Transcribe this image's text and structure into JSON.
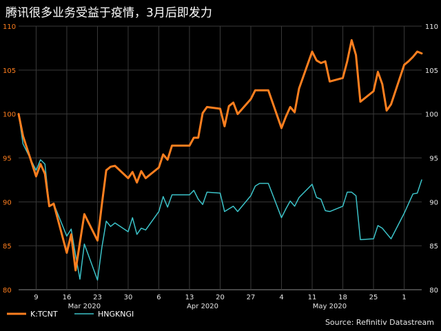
{
  "chart_data": {
    "type": "line",
    "title": "腾讯很多业务受益于疫情，3月后即发力",
    "source": "Source: Refinitiv Datastream",
    "ylim": [
      80,
      110
    ],
    "y_ticks": [
      80,
      85,
      90,
      95,
      100,
      105,
      110
    ],
    "x_ticks": [
      "9",
      "16",
      "23",
      "30",
      "6",
      "13",
      "20",
      "27",
      "4",
      "11",
      "18",
      "25",
      "1"
    ],
    "x_months": [
      "Mar 2020",
      "Apr 2020",
      "May 2020"
    ],
    "grid": true,
    "legend_position": "bottom-left",
    "colors": {
      "tcnt": "#ff7f1f",
      "hsi": "#3cc3c9"
    },
    "x": [
      "2020-03-05",
      "2020-03-06",
      "2020-03-09",
      "2020-03-10",
      "2020-03-11",
      "2020-03-12",
      "2020-03-13",
      "2020-03-16",
      "2020-03-17",
      "2020-03-18",
      "2020-03-19",
      "2020-03-20",
      "2020-03-23",
      "2020-03-24",
      "2020-03-25",
      "2020-03-26",
      "2020-03-27",
      "2020-03-30",
      "2020-03-31",
      "2020-04-01",
      "2020-04-02",
      "2020-04-03",
      "2020-04-06",
      "2020-04-07",
      "2020-04-08",
      "2020-04-09",
      "2020-04-10",
      "2020-04-13",
      "2020-04-14",
      "2020-04-15",
      "2020-04-16",
      "2020-04-17",
      "2020-04-20",
      "2020-04-21",
      "2020-04-22",
      "2020-04-23",
      "2020-04-24",
      "2020-04-27",
      "2020-04-28",
      "2020-04-29",
      "2020-04-30",
      "2020-05-01",
      "2020-05-04",
      "2020-05-05",
      "2020-05-06",
      "2020-05-07",
      "2020-05-08",
      "2020-05-11",
      "2020-05-12",
      "2020-05-13",
      "2020-05-14",
      "2020-05-15",
      "2020-05-18",
      "2020-05-19",
      "2020-05-20",
      "2020-05-21",
      "2020-05-22",
      "2020-05-25",
      "2020-05-26",
      "2020-05-27",
      "2020-05-28",
      "2020-05-29",
      "2020-06-01",
      "2020-06-02",
      "2020-06-03",
      "2020-06-04",
      "2020-06-05"
    ],
    "series": [
      {
        "name": "K:TCNT",
        "values": [
          100.0,
          97.5,
          92.9,
          94.3,
          93.2,
          89.5,
          89.8,
          84.2,
          86.3,
          82.2,
          85.4,
          88.6,
          85.6,
          89.7,
          93.6,
          94.0,
          94.1,
          92.7,
          93.4,
          92.2,
          93.5,
          92.7,
          93.9,
          95.4,
          94.8,
          96.4,
          96.4,
          96.4,
          97.3,
          97.3,
          100.1,
          100.8,
          100.6,
          98.6,
          100.9,
          101.3,
          100.0,
          101.7,
          102.7,
          102.7,
          102.7,
          102.7,
          98.4,
          99.7,
          100.8,
          100.2,
          102.9,
          107.1,
          106.1,
          105.8,
          106.0,
          103.7,
          104.1,
          106.0,
          108.4,
          106.7,
          101.4,
          102.6,
          104.8,
          103.4,
          100.4,
          101.1,
          105.6,
          106.0,
          106.5,
          107.1,
          106.9
        ]
      },
      {
        "name": "HNGKNGI",
        "values": [
          100.0,
          96.6,
          93.6,
          94.8,
          94.3,
          89.6,
          89.8,
          86.1,
          86.9,
          83.9,
          81.2,
          85.2,
          81.1,
          84.8,
          87.8,
          87.2,
          87.6,
          86.6,
          88.2,
          86.3,
          87.0,
          86.8,
          88.9,
          90.6,
          89.4,
          90.8,
          90.8,
          90.8,
          91.3,
          90.3,
          89.7,
          91.1,
          91.0,
          88.9,
          89.2,
          89.5,
          88.9,
          90.7,
          91.8,
          92.1,
          92.1,
          92.1,
          88.2,
          89.2,
          90.1,
          89.5,
          90.5,
          92.0,
          90.5,
          90.3,
          89.0,
          88.9,
          89.5,
          91.1,
          91.1,
          90.7,
          85.7,
          85.8,
          87.3,
          87.0,
          86.4,
          85.8,
          88.7,
          89.8,
          90.9,
          91.0,
          92.5
        ]
      }
    ]
  }
}
